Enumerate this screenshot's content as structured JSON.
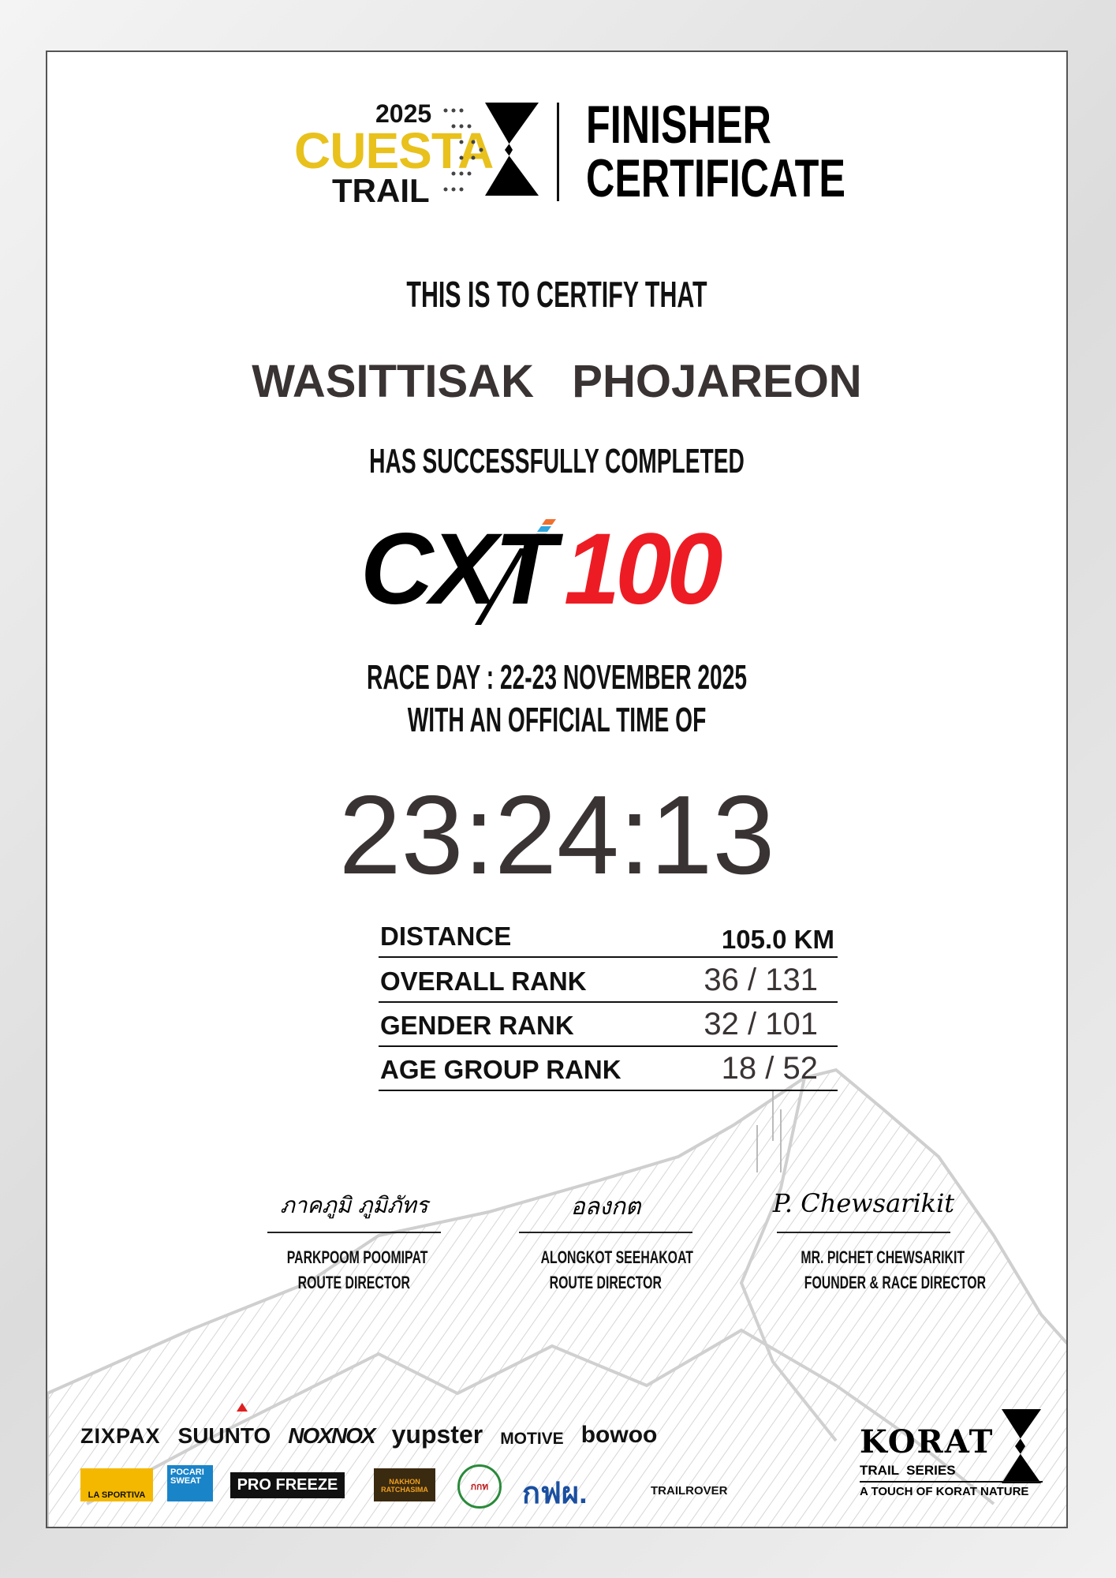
{
  "header": {
    "year": "2025",
    "event": "CUESTA",
    "event_sub": "TRAIL",
    "title_line1": "FINISHER",
    "title_line2": "CERTIFICATE"
  },
  "certify": "THIS IS TO CERTIFY THAT",
  "runner_name": "WASITTISAK   PHOJAREON",
  "completed": "HAS SUCCESSFULLY COMPLETED",
  "race_logo": {
    "prefix": "CXT",
    "distance": "100",
    "colors": {
      "black": "#000000",
      "red": "#ed1c24",
      "stripes": [
        "#f07030",
        "#2fa6de",
        "#c8c8c8",
        "#1aa89a"
      ]
    }
  },
  "race_day": "RACE DAY : 22-23 NOVEMBER 2025",
  "official_time_label": "WITH AN OFFICIAL TIME OF",
  "official_time": "23:24:13",
  "results": [
    {
      "label": "DISTANCE",
      "value": "105.0 KM"
    },
    {
      "label": "OVERALL RANK",
      "value": "36 / 131"
    },
    {
      "label": "GENDER RANK",
      "value": "32 / 101"
    },
    {
      "label": "AGE GROUP RANK",
      "value": "18 / 52"
    }
  ],
  "signatures": [
    {
      "signature": "ภาคภูมิ ภูมิภัทร",
      "name": "PARKPOOM POOMIPAT",
      "title": "ROUTE DIRECTOR"
    },
    {
      "signature": "อลงกต",
      "name": "ALONGKOT SEEHAKOAT",
      "title": "ROUTE DIRECTOR"
    },
    {
      "signature": "P. Chewsarikit",
      "name": "MR. PICHET CHEWSARIKIT",
      "title": "FOUNDER & RACE DIRECTOR"
    }
  ],
  "sponsors": {
    "row1": [
      "ZIXPAX",
      "SUUNTO",
      "NOXNOX",
      "yupster",
      "MOTIVE",
      "bowoo"
    ],
    "row2": [
      "LA SPORTIVA",
      "POCARI SWEAT",
      "PRO FREEZE",
      "NAKHON RATCHASIMA",
      "กกท",
      "กฟผ.",
      "TRAILROVER"
    ]
  },
  "korat_logo": {
    "name": "KORAT",
    "sub": "TRAIL  SERIES",
    "tagline": "A TOUCH OF KORAT NATURE"
  },
  "accent_color": "#e8c11c"
}
